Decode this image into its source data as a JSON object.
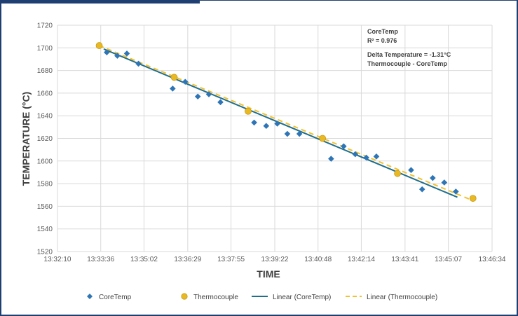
{
  "chart_data": {
    "type": "scatter",
    "title": "",
    "xlabel": "TIME",
    "ylabel": "TEMPERATURE (°C)",
    "x_tick_labels": [
      "13:32:10",
      "13:33:36",
      "13:35:02",
      "13:36:29",
      "13:37:55",
      "13:39:22",
      "13:40:48",
      "13:42:14",
      "13:43:41",
      "13:45:07",
      "13:46:34"
    ],
    "xlim": [
      "13:32:10",
      "13:46:34"
    ],
    "ylim": [
      1520,
      1720
    ],
    "y_ticks": [
      1520,
      1540,
      1560,
      1580,
      1600,
      1620,
      1640,
      1660,
      1680,
      1700,
      1720
    ],
    "grid": true,
    "legend_position": "bottom",
    "series": [
      {
        "name": "CoreTemp",
        "kind": "scatter",
        "marker": "diamond",
        "color": "#2e75b6",
        "points": [
          {
            "x": "13:33:48",
            "y": 1696
          },
          {
            "x": "13:34:09",
            "y": 1693
          },
          {
            "x": "13:34:28",
            "y": 1695
          },
          {
            "x": "13:34:51",
            "y": 1686
          },
          {
            "x": "13:35:59",
            "y": 1664
          },
          {
            "x": "13:36:24",
            "y": 1670
          },
          {
            "x": "13:36:49",
            "y": 1657
          },
          {
            "x": "13:37:11",
            "y": 1659
          },
          {
            "x": "13:37:34",
            "y": 1652
          },
          {
            "x": "13:38:41",
            "y": 1634
          },
          {
            "x": "13:39:05",
            "y": 1631
          },
          {
            "x": "13:39:27",
            "y": 1633
          },
          {
            "x": "13:39:47",
            "y": 1624
          },
          {
            "x": "13:40:11",
            "y": 1624
          },
          {
            "x": "13:41:14",
            "y": 1602
          },
          {
            "x": "13:41:39",
            "y": 1613
          },
          {
            "x": "13:42:02",
            "y": 1606
          },
          {
            "x": "13:42:24",
            "y": 1603
          },
          {
            "x": "13:42:44",
            "y": 1604
          },
          {
            "x": "13:43:53",
            "y": 1592
          },
          {
            "x": "13:44:15",
            "y": 1575
          },
          {
            "x": "13:44:36",
            "y": 1585
          },
          {
            "x": "13:44:59",
            "y": 1581
          },
          {
            "x": "13:45:22",
            "y": 1573
          }
        ]
      },
      {
        "name": "Thermocouple",
        "kind": "scatter",
        "marker": "circle",
        "color": "#e8b923",
        "points": [
          {
            "x": "13:33:33",
            "y": 1702
          },
          {
            "x": "13:36:02",
            "y": 1674
          },
          {
            "x": "13:38:29",
            "y": 1644
          },
          {
            "x": "13:40:57",
            "y": 1620
          },
          {
            "x": "13:43:26",
            "y": 1589
          },
          {
            "x": "13:45:56",
            "y": 1567
          }
        ]
      },
      {
        "name": "Linear (CoreTemp)",
        "kind": "trendline",
        "style": "solid",
        "color": "#1f6e8c",
        "points": [
          {
            "x": "13:33:42",
            "y": 1699
          },
          {
            "x": "13:45:25",
            "y": 1568
          }
        ]
      },
      {
        "name": "Linear (Thermocouple)",
        "kind": "trendline",
        "style": "dashed",
        "color": "#f2c12e",
        "points": [
          {
            "x": "13:33:33",
            "y": 1702
          },
          {
            "x": "13:45:56",
            "y": 1565
          }
        ]
      }
    ],
    "annotations": [
      "CoreTemp",
      "R² = 0.976",
      "Delta Temperature = -1.31°C",
      "Thermocouple - CoreTemp"
    ]
  }
}
